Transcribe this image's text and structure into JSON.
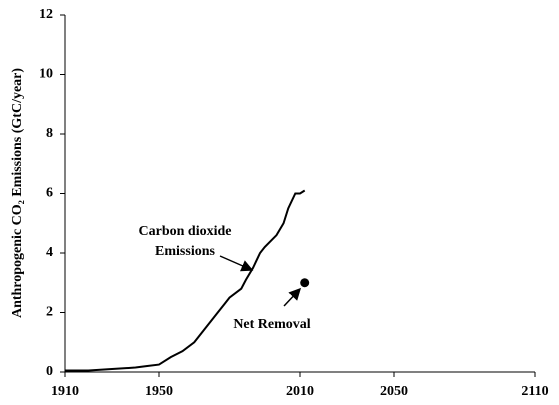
{
  "chart_data": {
    "type": "line",
    "ylabel": "Anthropogenic CO₂ Emissions (GtC/year)",
    "x": [
      1910,
      1920,
      1930,
      1940,
      1945,
      1950,
      1955,
      1960,
      1965,
      1970,
      1975,
      1978,
      1980,
      1985,
      1987,
      1990,
      1993,
      1995,
      2000,
      2003,
      2005,
      2008,
      2010,
      2012
    ],
    "values": [
      0.05,
      0.05,
      0.1,
      0.15,
      0.2,
      0.25,
      0.5,
      0.7,
      1.0,
      1.5,
      2.0,
      2.3,
      2.5,
      2.8,
      3.1,
      3.5,
      4.0,
      4.2,
      4.6,
      5.0,
      5.5,
      6.0,
      6.0,
      6.1
    ],
    "color": "#000000",
    "point": {
      "x": 2012,
      "y": 3
    },
    "annotations": [
      "Carbon dioxide",
      "Emissions",
      "Net Removal"
    ],
    "xlim": [
      1910,
      2110
    ],
    "xticks": [
      1910,
      1950,
      2010,
      2050,
      2110
    ],
    "ylim": [
      0,
      12
    ],
    "yticks": [
      0,
      2,
      4,
      6,
      8,
      10,
      12
    ],
    "grid": false
  }
}
